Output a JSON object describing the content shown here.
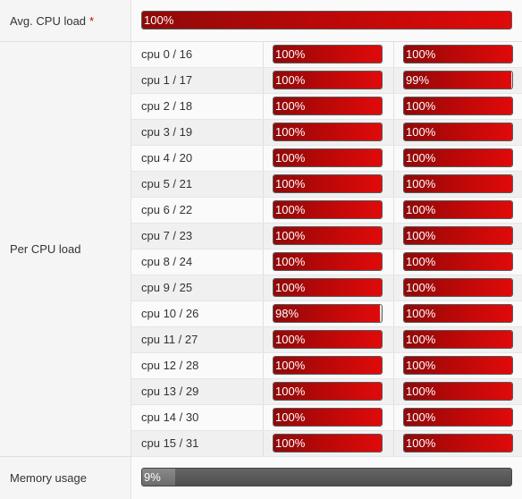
{
  "avg_cpu": {
    "label": "Avg. CPU load",
    "required_mark": "*",
    "value_text": "100%",
    "fraction": 1.0
  },
  "per_cpu": {
    "label": "Per CPU load",
    "rows": [
      {
        "name": "cpu 0 / 16",
        "a_text": "100%",
        "a": 1.0,
        "b_text": "100%",
        "b": 1.0
      },
      {
        "name": "cpu 1 / 17",
        "a_text": "100%",
        "a": 1.0,
        "b_text": "99%",
        "b": 0.99
      },
      {
        "name": "cpu 2 / 18",
        "a_text": "100%",
        "a": 1.0,
        "b_text": "100%",
        "b": 1.0
      },
      {
        "name": "cpu 3 / 19",
        "a_text": "100%",
        "a": 1.0,
        "b_text": "100%",
        "b": 1.0
      },
      {
        "name": "cpu 4 / 20",
        "a_text": "100%",
        "a": 1.0,
        "b_text": "100%",
        "b": 1.0
      },
      {
        "name": "cpu 5 / 21",
        "a_text": "100%",
        "a": 1.0,
        "b_text": "100%",
        "b": 1.0
      },
      {
        "name": "cpu 6 / 22",
        "a_text": "100%",
        "a": 1.0,
        "b_text": "100%",
        "b": 1.0
      },
      {
        "name": "cpu 7 / 23",
        "a_text": "100%",
        "a": 1.0,
        "b_text": "100%",
        "b": 1.0
      },
      {
        "name": "cpu 8 / 24",
        "a_text": "100%",
        "a": 1.0,
        "b_text": "100%",
        "b": 1.0
      },
      {
        "name": "cpu 9 / 25",
        "a_text": "100%",
        "a": 1.0,
        "b_text": "100%",
        "b": 1.0
      },
      {
        "name": "cpu 10 / 26",
        "a_text": "98%",
        "a": 0.98,
        "b_text": "100%",
        "b": 1.0
      },
      {
        "name": "cpu 11 / 27",
        "a_text": "100%",
        "a": 1.0,
        "b_text": "100%",
        "b": 1.0
      },
      {
        "name": "cpu 12 / 28",
        "a_text": "100%",
        "a": 1.0,
        "b_text": "100%",
        "b": 1.0
      },
      {
        "name": "cpu 13 / 29",
        "a_text": "100%",
        "a": 1.0,
        "b_text": "100%",
        "b": 1.0
      },
      {
        "name": "cpu 14 / 30",
        "a_text": "100%",
        "a": 1.0,
        "b_text": "100%",
        "b": 1.0
      },
      {
        "name": "cpu 15 / 31",
        "a_text": "100%",
        "a": 1.0,
        "b_text": "100%",
        "b": 1.0
      }
    ]
  },
  "memory": {
    "label": "Memory usage",
    "value_text": "9%",
    "fraction": 0.09
  },
  "colors": {
    "load_bar_dark": "#8f0a0a",
    "load_bar_bright": "#e00a0a",
    "memory_bar": "#555555",
    "required_mark": "#cc0000"
  }
}
